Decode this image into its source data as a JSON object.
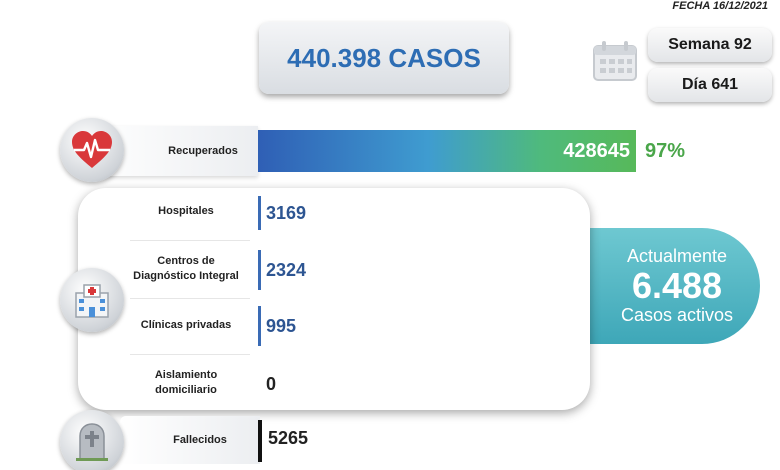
{
  "header": {
    "date": "FECHA 16/12/2021",
    "total_cases": "440.398 CASOS",
    "week": "Semana 92",
    "day": "Día 641"
  },
  "recovered": {
    "label": "Recuperados",
    "value": "428645",
    "percent": "97%",
    "fraction": 0.97
  },
  "breakdown": {
    "hospitals": {
      "label": "Hospitales",
      "value": "3169"
    },
    "cdi": {
      "label_line1": "Centros de",
      "label_line2": "Diagnóstico Integral",
      "value": "2324"
    },
    "private": {
      "label": "Clínicas privadas",
      "value": "995"
    },
    "home": {
      "label_line1": "Aislamiento",
      "label_line2": "domiciliario",
      "value": "0"
    }
  },
  "active": {
    "line1": "Actualmente",
    "value": "6.488",
    "line3": "Casos activos"
  },
  "deaths": {
    "label": "Fallecidos",
    "value": "5265"
  },
  "icons": {
    "calendar": "calendar-icon",
    "heart": "heart-pulse-icon",
    "hospital": "hospital-icon",
    "tombstone": "tombstone-icon"
  },
  "colors": {
    "title_blue": "#2d6db4",
    "recovered_green": "#4aa64a",
    "active_teal": "#3ea7b8"
  }
}
